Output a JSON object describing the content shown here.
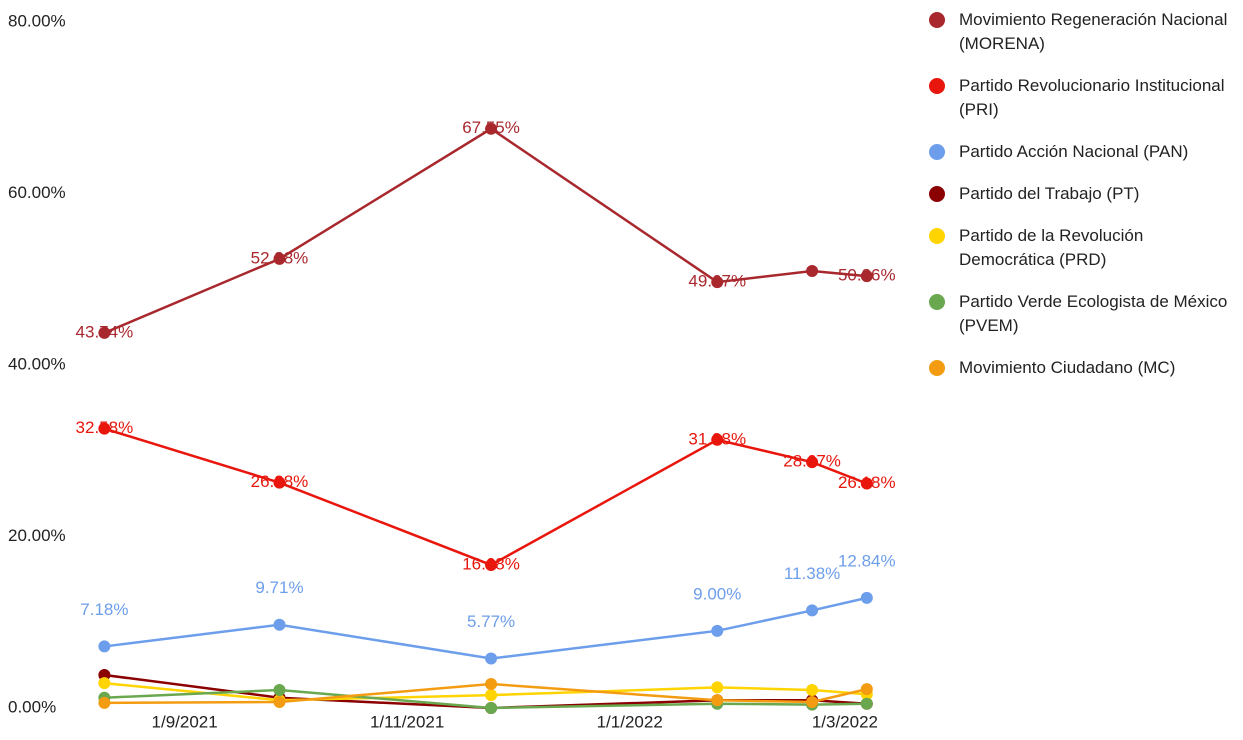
{
  "chart_data": {
    "type": "line",
    "x": [
      "2021-08-10",
      "2021-09-27",
      "2021-11-24",
      "2022-01-25",
      "2022-02-20",
      "2022-03-07"
    ],
    "xlim": [
      "2021-07-25",
      "2022-03-15"
    ],
    "xticks": [
      {
        "value": "2021-09-01",
        "label": "1/9/2021"
      },
      {
        "value": "2021-11-01",
        "label": "1/11/2021"
      },
      {
        "value": "2022-01-01",
        "label": "1/1/2022"
      },
      {
        "value": "2022-03-01",
        "label": "1/3/2022"
      }
    ],
    "ylim": [
      0,
      80
    ],
    "yticks": [
      {
        "value": 0,
        "label": "0.00%"
      },
      {
        "value": 20,
        "label": "20.00%"
      },
      {
        "value": 40,
        "label": "40.00%"
      },
      {
        "value": 60,
        "label": "60.00%"
      },
      {
        "value": 80,
        "label": "80.00%"
      }
    ],
    "grid": false,
    "legend": "right",
    "series": [
      {
        "name": "Movimiento Regeneración Nacional (MORENA)",
        "color": "#a8282e",
        "values": [
          43.74,
          52.38,
          67.55,
          49.67,
          50.96,
          50.36
        ],
        "value_labels": [
          "43.74%",
          "52.38%",
          "67.55%",
          "49.67%",
          null,
          "50.36%"
        ]
      },
      {
        "name": "Partido Revolucionario Institucional (PRI)",
        "color": "#e8160c",
        "values": [
          32.58,
          26.28,
          16.68,
          31.28,
          28.67,
          26.18
        ],
        "value_labels": [
          "32.58%",
          "26.28%",
          "16.68%",
          "31.28%",
          "28.67%",
          "26.18%"
        ]
      },
      {
        "name": "Partido Acción Nacional (PAN)",
        "color": "#6d9eeb",
        "values": [
          7.18,
          9.71,
          5.77,
          9.0,
          11.38,
          12.84
        ],
        "value_labels": [
          "7.18%",
          "9.71%",
          "5.77%",
          "9.00%",
          "11.38%",
          "12.84%"
        ]
      },
      {
        "name": "Partido del Trabajo (PT)",
        "color": "#8b0000",
        "values": [
          3.85,
          1.2,
          0,
          0.9,
          0.9,
          0.5
        ]
      },
      {
        "name": "Partido de la Revolución Democrática (PRD)",
        "color": "#ffd400",
        "values": [
          2.9,
          0.9,
          1.5,
          2.4,
          2.1,
          1.6
        ]
      },
      {
        "name": "Partido Verde Ecologista de México (PVEM)",
        "color": "#6aa84f",
        "values": [
          1.2,
          2.1,
          0,
          0.5,
          0.4,
          0.5
        ]
      },
      {
        "name": "Movimiento Ciudadano (MC)",
        "color": "#f39c12",
        "values": [
          0.6,
          0.7,
          2.8,
          0.9,
          0.7,
          2.2
        ]
      }
    ]
  }
}
